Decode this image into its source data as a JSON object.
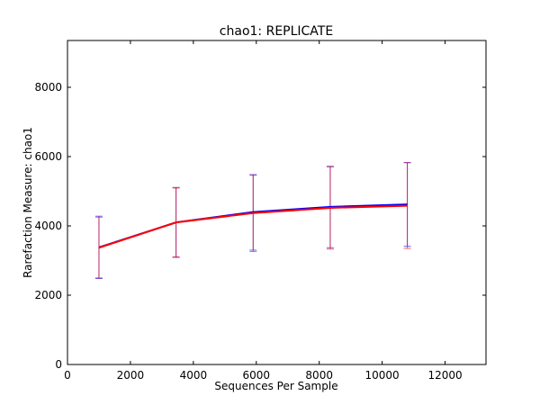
{
  "chart_data": {
    "type": "line",
    "title": "chao1: REPLICATE",
    "xlabel": "Sequences Per Sample",
    "ylabel": "Rarefaction Measure: chao1",
    "xlim": [
      0,
      13300
    ],
    "ylim": [
      0,
      9350
    ],
    "x_ticks": [
      0,
      2000,
      4000,
      6000,
      8000,
      10000,
      12000
    ],
    "y_ticks": [
      0,
      2000,
      4000,
      6000,
      8000
    ],
    "grid": false,
    "series": [
      {
        "color": "#0000ff",
        "x": [
          1000,
          3450,
          5900,
          8350,
          10800
        ],
        "y": [
          3380,
          4100,
          4400,
          4550,
          4620
        ],
        "err_low": [
          2480,
          3090,
          3300,
          3370,
          3410
        ],
        "err_high": [
          4280,
          5110,
          5480,
          5720,
          5830
        ]
      },
      {
        "color": "#ff0000",
        "x": [
          1000,
          3450,
          5900,
          8350,
          10800
        ],
        "y": [
          3370,
          4100,
          4370,
          4520,
          4580
        ],
        "err_low": [
          2500,
          3110,
          3260,
          3330,
          3350
        ],
        "err_high": [
          4250,
          5090,
          5460,
          5700,
          5820
        ]
      }
    ]
  }
}
